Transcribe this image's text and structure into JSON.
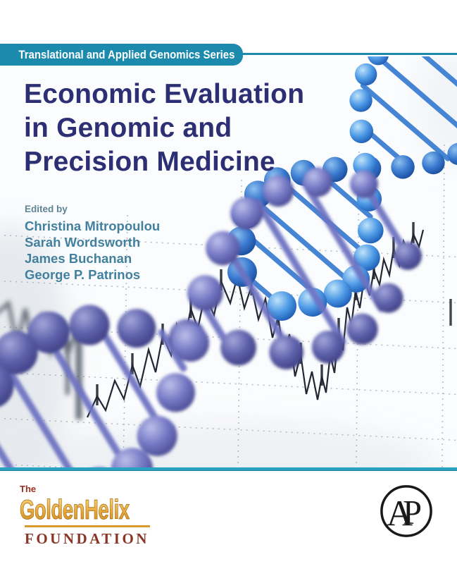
{
  "series_banner": {
    "label": "Translational and Applied Genomics Series"
  },
  "title": {
    "text": "Economic Evaluation\nin Genomic and\nPrecision Medicine"
  },
  "editors": {
    "heading": "Edited by",
    "names": [
      "Christina Mitropoulou",
      "Sarah Wordsworth",
      "James Buchanan",
      "George P. Patrinos"
    ]
  },
  "publishers": {
    "foundation": {
      "prefix": "The",
      "name": "GoldenHelix",
      "subtitle": "FOUNDATION"
    },
    "academic_press": {
      "monogram_a": "A",
      "monogram_p": "P"
    }
  },
  "icons": {
    "dna_helix": "dna-helix-illustration",
    "stock_chart": "candlestick-stock-chart",
    "ap_circle": "academic-press-monogram"
  },
  "colors": {
    "banner_teal": "#1b8aad",
    "title_navy": "#2d2f74",
    "editor_teal": "#42809f",
    "separator_teal": "#2aa2c2",
    "helix_blue": "#3d7ed2",
    "helix_purple": "#6d72c2",
    "foundation_gold": "#dd9c30",
    "foundation_maroon": "#8b3526"
  }
}
